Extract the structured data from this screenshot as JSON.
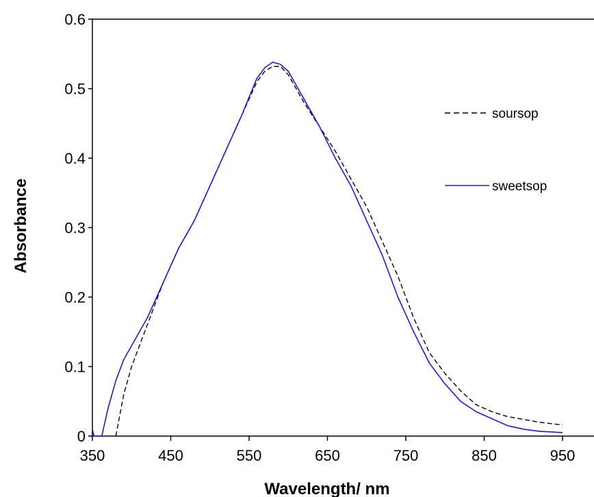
{
  "chart_data": {
    "type": "line",
    "title": "",
    "xlabel": "Wavelength/ nm",
    "ylabel": "Absorbance",
    "xlim": [
      350,
      950
    ],
    "ylim": [
      0,
      0.6
    ],
    "x_ticks": [
      "350",
      "450",
      "550",
      "650",
      "750",
      "850",
      "950"
    ],
    "y_ticks": [
      "0",
      "0.1",
      "0.2",
      "0.3",
      "0.4",
      "0.5",
      "0.6"
    ],
    "grid": false,
    "legend_position": "right",
    "series": [
      {
        "name": "soursop",
        "style": "dashed",
        "color": "#000000",
        "x": [
          380,
          390,
          400,
          420,
          440,
          460,
          480,
          500,
          520,
          540,
          560,
          570,
          580,
          590,
          600,
          620,
          640,
          660,
          680,
          700,
          720,
          740,
          760,
          780,
          800,
          820,
          840,
          860,
          880,
          900,
          920,
          950
        ],
        "y": [
          0.0,
          0.06,
          0.1,
          0.16,
          0.22,
          0.27,
          0.31,
          0.36,
          0.41,
          0.46,
          0.51,
          0.525,
          0.532,
          0.532,
          0.52,
          0.48,
          0.445,
          0.41,
          0.37,
          0.33,
          0.28,
          0.23,
          0.17,
          0.12,
          0.09,
          0.065,
          0.045,
          0.035,
          0.028,
          0.024,
          0.02,
          0.016
        ]
      },
      {
        "name": "sweetsop",
        "style": "solid",
        "color": "#1a1adc",
        "x": [
          350,
          352,
          356,
          362,
          366,
          370,
          375,
          380,
          390,
          400,
          420,
          440,
          460,
          480,
          500,
          520,
          540,
          560,
          570,
          580,
          590,
          600,
          620,
          640,
          660,
          680,
          700,
          720,
          740,
          760,
          780,
          800,
          820,
          840,
          860,
          880,
          900,
          920,
          950
        ],
        "y": [
          0.01,
          0.0,
          0.0,
          0.0,
          0.02,
          0.04,
          0.06,
          0.08,
          0.11,
          0.13,
          0.17,
          0.22,
          0.27,
          0.31,
          0.36,
          0.41,
          0.46,
          0.515,
          0.53,
          0.538,
          0.535,
          0.525,
          0.485,
          0.445,
          0.4,
          0.36,
          0.31,
          0.26,
          0.2,
          0.15,
          0.105,
          0.075,
          0.05,
          0.035,
          0.025,
          0.015,
          0.01,
          0.007,
          0.005
        ]
      }
    ]
  }
}
